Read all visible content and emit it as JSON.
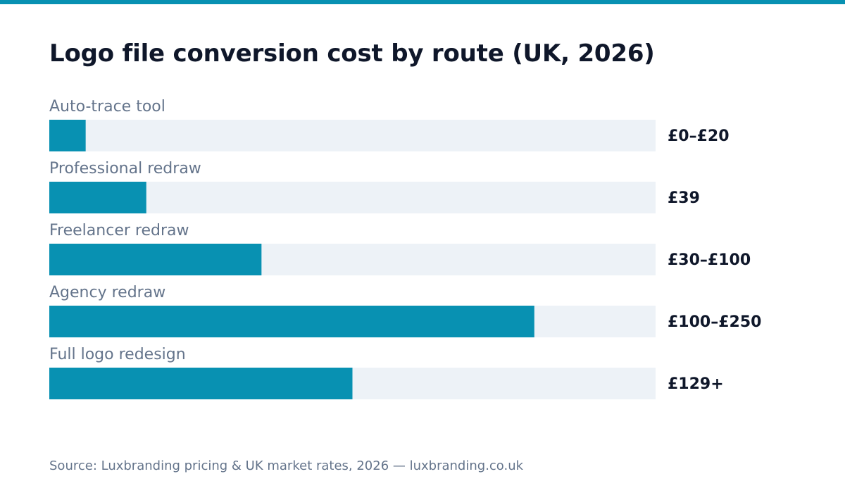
{
  "colors": {
    "accent": "#0891b2",
    "track": "#edf2f7",
    "title": "#0f172a",
    "muted_text": "#64748b"
  },
  "chart_data": {
    "type": "bar",
    "orientation": "horizontal",
    "title": "Logo file conversion cost by route (UK, 2026)",
    "xlabel": "",
    "ylabel": "",
    "grid": false,
    "legend": "none",
    "xlim": [
      0,
      500
    ],
    "categories": [
      "Auto-trace tool",
      "Professional redraw",
      "Freelancer redraw",
      "Agency redraw",
      "Full logo redesign"
    ],
    "values": [
      30,
      80,
      175,
      400,
      250
    ],
    "value_labels": [
      "£0–£20",
      "£39",
      "£30–£100",
      "£100–£250",
      "£129+"
    ]
  },
  "footer": {
    "source": "Source: Luxbranding pricing & UK market rates, 2026 — luxbranding.co.uk"
  }
}
